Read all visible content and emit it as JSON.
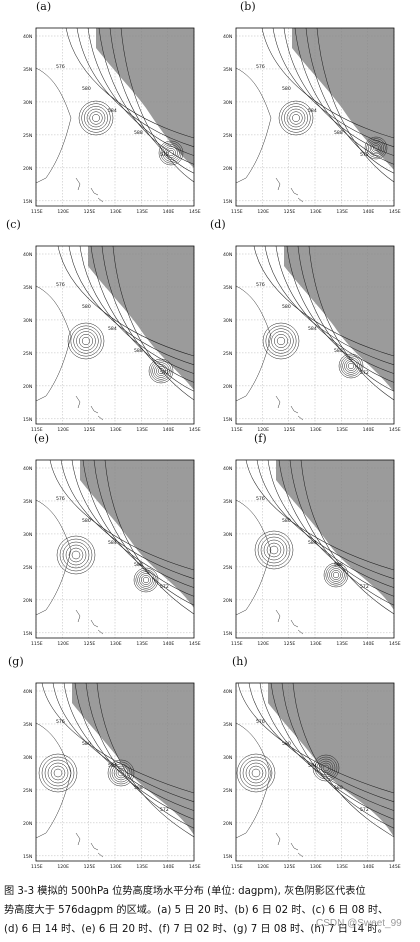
{
  "figure": {
    "panels": [
      {
        "label": "(a)"
      },
      {
        "label": "(b)"
      },
      {
        "label": "(c)"
      },
      {
        "label": "(d)"
      },
      {
        "label": "(e)"
      },
      {
        "label": "(f)"
      },
      {
        "label": "(g)"
      },
      {
        "label": "(h)"
      }
    ],
    "y_ticks": [
      "40N",
      "35N",
      "30N",
      "25N",
      "20N",
      "15N"
    ],
    "x_ticks": [
      "115E",
      "120E",
      "125E",
      "130E",
      "135E",
      "140E",
      "145E"
    ],
    "contour_labels": [
      "576",
      "580",
      "584",
      "588",
      "572"
    ],
    "colors": {
      "shade": "#9b9b9b",
      "contour": "#222222",
      "grid": "#888888"
    }
  },
  "caption": {
    "line1": "图 3-3  模拟的 500hPa 位势高度场水平分布 (单位: dagpm), 灰色阴影区代表位",
    "line2": "势高度大于 576dagpm 的区域。(a) 5 日 20 时、(b) 6 日 02 时、(c) 6 日 08 时、",
    "line3": "(d) 6 日 14 时、(e) 6 日 20 时、(f) 7 日 02 时、(g) 7 日 08 时、(h) 7 日 14 时。"
  },
  "watermark": "CSDN @Sweet_99"
}
